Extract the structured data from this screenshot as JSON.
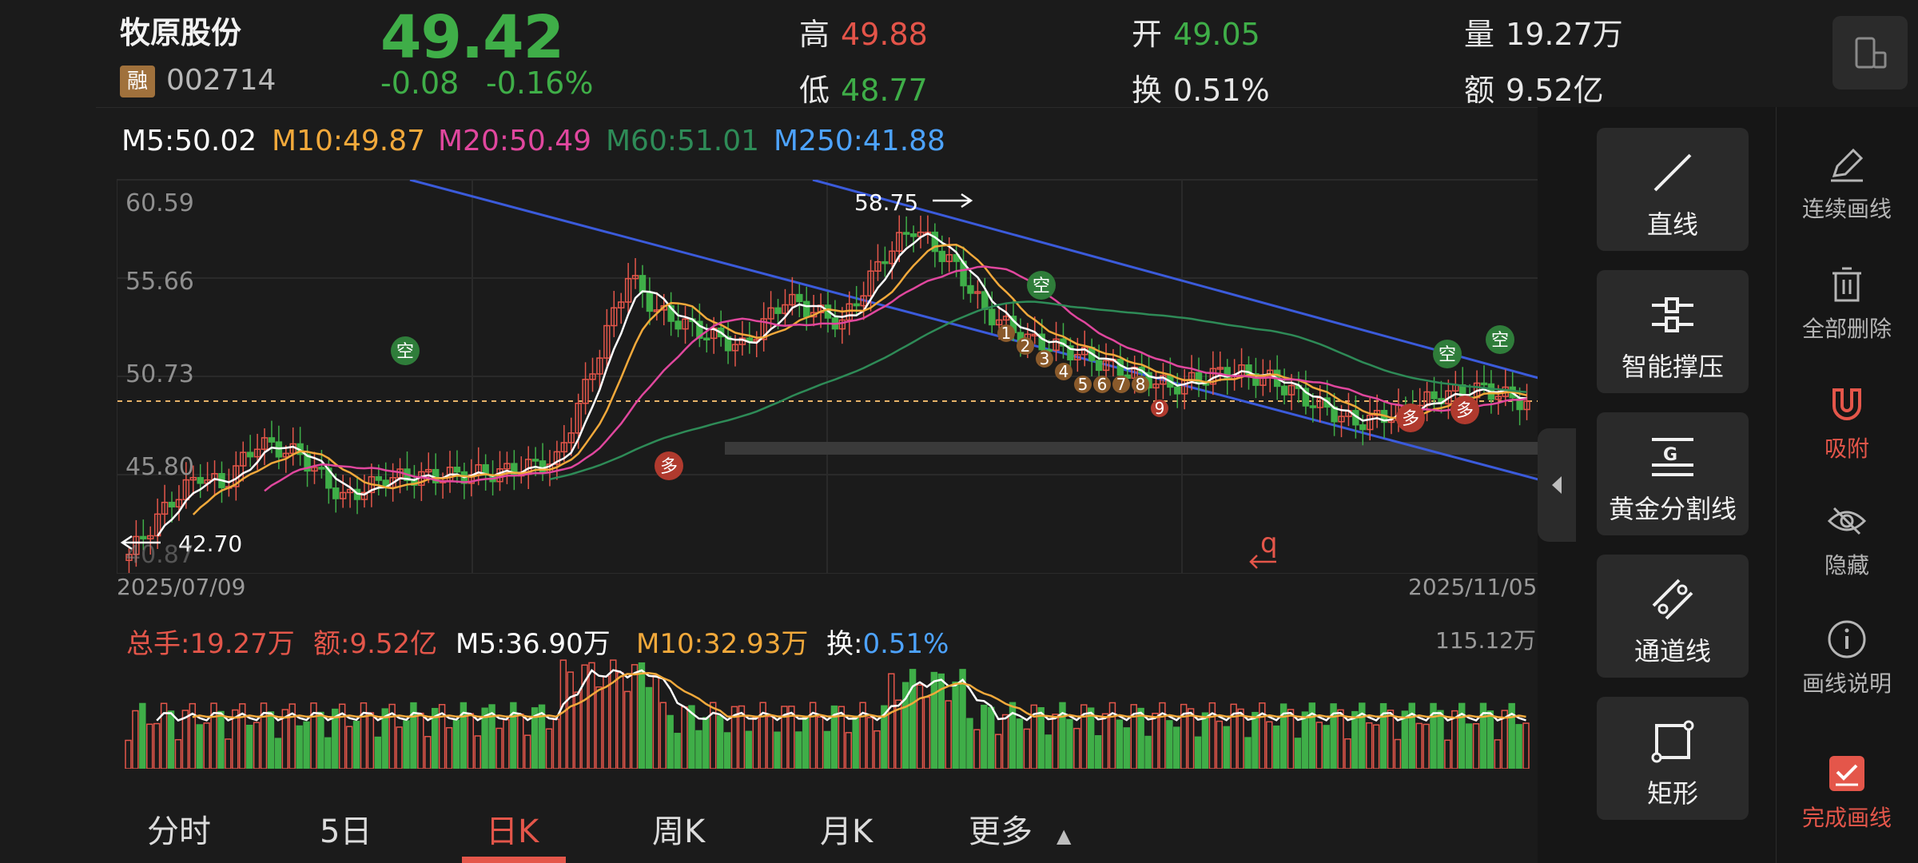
{
  "stock": {
    "name": "牧原股份",
    "margin_tag": "融",
    "code": "002714",
    "price": "49.42",
    "change": "-0.08",
    "change_pct": "-0.16%",
    "high_label": "高",
    "high": "49.88",
    "low_label": "低",
    "low": "48.77",
    "open_label": "开",
    "open": "49.05",
    "turnover_label": "换",
    "turnover": "0.51%",
    "volume_label": "量",
    "volume": "19.27万",
    "amount_label": "额",
    "amount": "9.52亿"
  },
  "ma": {
    "m5": "M5:50.02",
    "m10": "M10:49.87",
    "m20": "M20:50.49",
    "m60": "M60:51.01",
    "m250": "M250:41.88"
  },
  "colors": {
    "m5": "#ffffff",
    "m10": "#f2a93b",
    "m20": "#e0479e",
    "m60": "#2e8b57",
    "m250": "#4da3ff",
    "up": "#e4564a",
    "down": "#3fae48",
    "channel": "#3b5bdb"
  },
  "chart": {
    "y_ticks": [
      "60.59",
      "55.66",
      "50.73",
      "45.80",
      "40.87"
    ],
    "max_label": "58.75",
    "min_label": "42.70",
    "start_date": "2025/07/09",
    "end_date": "2025/11/05",
    "signals": [
      "空",
      "空",
      "空",
      "多",
      "多",
      "空",
      "多"
    ],
    "nine_count": [
      "1",
      "2",
      "3",
      "4",
      "5",
      "6",
      "7",
      "8",
      "9"
    ],
    "q_mark": "q"
  },
  "volume": {
    "total": "总手:19.27万",
    "amount": "额:9.52亿",
    "m5": "M5:36.90万",
    "m10": "M10:32.93万",
    "turnover_label": "换:",
    "turnover_value": "0.51%",
    "max": "115.12万"
  },
  "tabs": [
    "分时",
    "5日",
    "日K",
    "周K",
    "月K",
    "更多"
  ],
  "tools": [
    "直线",
    "智能撑压",
    "黄金分割线",
    "通道线",
    "矩形"
  ],
  "side": [
    "连续画线",
    "全部删除",
    "吸附",
    "隐藏",
    "画线说明",
    "完成画线"
  ]
}
